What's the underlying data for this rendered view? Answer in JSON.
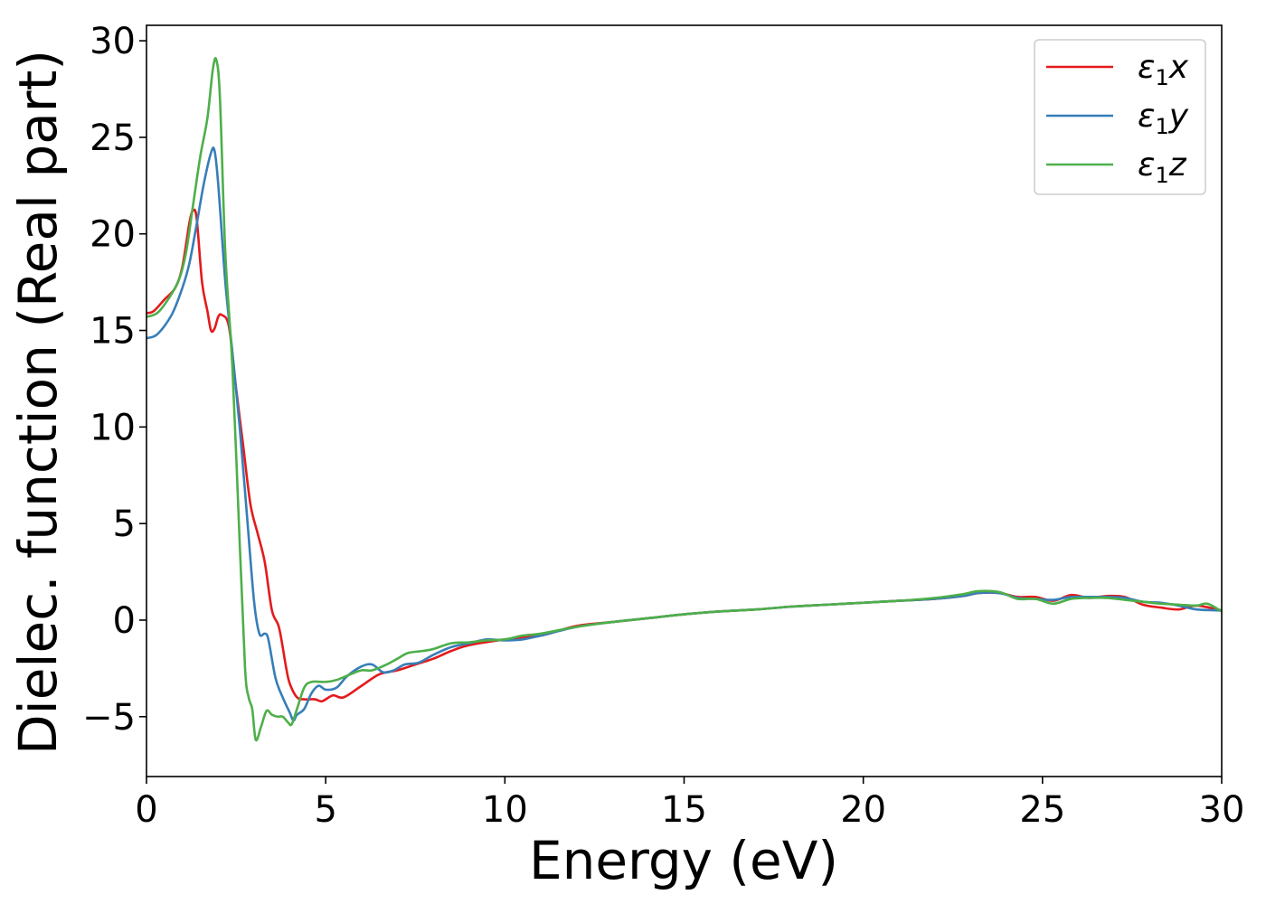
{
  "chart_data": {
    "type": "line",
    "xlabel": "Energy (eV)",
    "ylabel": "Dielec. function (Real part)",
    "xlim": [
      0,
      30
    ],
    "ylim": [
      -8.1,
      30.8
    ],
    "xticks": [
      0,
      5,
      10,
      15,
      20,
      25,
      30
    ],
    "xtick_labels": [
      "0",
      "5",
      "10",
      "15",
      "20",
      "25",
      "30"
    ],
    "yticks": [
      -5,
      0,
      5,
      10,
      15,
      20,
      25,
      30
    ],
    "ytick_labels": [
      "−5",
      "0",
      "5",
      "10",
      "15",
      "20",
      "25",
      "30"
    ],
    "grid": false,
    "legend_position": "top-right",
    "series": [
      {
        "name": "ε₁x",
        "legend_base": "ε",
        "legend_sub": "1",
        "legend_axis": "x",
        "color": "#e41a1c",
        "points": [
          [
            0,
            15.9
          ],
          [
            0.2,
            16.0
          ],
          [
            0.5,
            16.6
          ],
          [
            0.8,
            17.2
          ],
          [
            1.0,
            18.3
          ],
          [
            1.2,
            20.6
          ],
          [
            1.3,
            21.2
          ],
          [
            1.4,
            20.8
          ],
          [
            1.55,
            17.5
          ],
          [
            1.7,
            16.0
          ],
          [
            1.8,
            15.0
          ],
          [
            1.9,
            15.1
          ],
          [
            2.0,
            15.7
          ],
          [
            2.1,
            15.8
          ],
          [
            2.3,
            15.2
          ],
          [
            2.5,
            12.0
          ],
          [
            2.7,
            9.0
          ],
          [
            2.9,
            6.0
          ],
          [
            3.1,
            4.5
          ],
          [
            3.3,
            3.0
          ],
          [
            3.5,
            0.5
          ],
          [
            3.7,
            -0.4
          ],
          [
            3.9,
            -2.5
          ],
          [
            4.0,
            -3.3
          ],
          [
            4.2,
            -4.0
          ],
          [
            4.4,
            -4.1
          ],
          [
            4.7,
            -4.1
          ],
          [
            4.9,
            -4.2
          ],
          [
            5.2,
            -3.9
          ],
          [
            5.5,
            -4.0
          ],
          [
            6.0,
            -3.4
          ],
          [
            6.5,
            -2.8
          ],
          [
            7.0,
            -2.6
          ],
          [
            7.5,
            -2.3
          ],
          [
            8.0,
            -2.0
          ],
          [
            8.5,
            -1.6
          ],
          [
            9.0,
            -1.3
          ],
          [
            10.0,
            -1.0
          ],
          [
            11.0,
            -0.8
          ],
          [
            12.0,
            -0.3
          ],
          [
            13.0,
            -0.1
          ],
          [
            14.0,
            0.1
          ],
          [
            15.0,
            0.3
          ],
          [
            16.0,
            0.45
          ],
          [
            17.0,
            0.55
          ],
          [
            18.0,
            0.7
          ],
          [
            19.0,
            0.8
          ],
          [
            20.0,
            0.9
          ],
          [
            21.0,
            1.0
          ],
          [
            22.0,
            1.1
          ],
          [
            22.8,
            1.25
          ],
          [
            23.2,
            1.4
          ],
          [
            23.8,
            1.4
          ],
          [
            24.3,
            1.2
          ],
          [
            24.8,
            1.2
          ],
          [
            25.3,
            1.0
          ],
          [
            25.8,
            1.3
          ],
          [
            26.3,
            1.15
          ],
          [
            26.8,
            1.25
          ],
          [
            27.3,
            1.2
          ],
          [
            27.8,
            0.8
          ],
          [
            28.3,
            0.65
          ],
          [
            28.8,
            0.55
          ],
          [
            29.3,
            0.75
          ],
          [
            30.0,
            0.5
          ]
        ]
      },
      {
        "name": "ε₁y",
        "legend_base": "ε",
        "legend_sub": "1",
        "legend_axis": "y",
        "color": "#377eb8",
        "points": [
          [
            0,
            14.6
          ],
          [
            0.3,
            14.8
          ],
          [
            0.7,
            15.8
          ],
          [
            1.0,
            17.2
          ],
          [
            1.2,
            18.5
          ],
          [
            1.4,
            20.5
          ],
          [
            1.6,
            22.6
          ],
          [
            1.8,
            24.2
          ],
          [
            1.9,
            24.3
          ],
          [
            2.0,
            22.6
          ],
          [
            2.2,
            17.5
          ],
          [
            2.4,
            13.8
          ],
          [
            2.6,
            10.0
          ],
          [
            2.8,
            5.5
          ],
          [
            3.0,
            1.0
          ],
          [
            3.15,
            -0.7
          ],
          [
            3.3,
            -0.7
          ],
          [
            3.4,
            -1.0
          ],
          [
            3.6,
            -3.0
          ],
          [
            3.8,
            -4.0
          ],
          [
            4.0,
            -4.8
          ],
          [
            4.1,
            -5.2
          ],
          [
            4.2,
            -4.9
          ],
          [
            4.4,
            -4.6
          ],
          [
            4.6,
            -3.8
          ],
          [
            4.8,
            -3.4
          ],
          [
            5.0,
            -3.6
          ],
          [
            5.3,
            -3.5
          ],
          [
            5.6,
            -2.9
          ],
          [
            6.0,
            -2.4
          ],
          [
            6.3,
            -2.3
          ],
          [
            6.6,
            -2.7
          ],
          [
            6.9,
            -2.6
          ],
          [
            7.2,
            -2.3
          ],
          [
            7.6,
            -2.2
          ],
          [
            8.0,
            -1.8
          ],
          [
            8.5,
            -1.4
          ],
          [
            9.0,
            -1.2
          ],
          [
            9.5,
            -1.0
          ],
          [
            10.0,
            -1.05
          ],
          [
            10.5,
            -1.0
          ],
          [
            11.0,
            -0.8
          ],
          [
            12.0,
            -0.35
          ],
          [
            13.0,
            -0.1
          ],
          [
            14.0,
            0.1
          ],
          [
            15.0,
            0.3
          ],
          [
            16.0,
            0.45
          ],
          [
            17.0,
            0.55
          ],
          [
            18.0,
            0.7
          ],
          [
            19.0,
            0.8
          ],
          [
            20.0,
            0.9
          ],
          [
            21.0,
            1.0
          ],
          [
            22.0,
            1.1
          ],
          [
            22.8,
            1.25
          ],
          [
            23.2,
            1.4
          ],
          [
            23.8,
            1.4
          ],
          [
            24.3,
            1.15
          ],
          [
            24.8,
            1.1
          ],
          [
            25.3,
            1.05
          ],
          [
            25.8,
            1.2
          ],
          [
            26.3,
            1.2
          ],
          [
            26.8,
            1.2
          ],
          [
            27.3,
            1.15
          ],
          [
            27.8,
            0.95
          ],
          [
            28.3,
            0.9
          ],
          [
            28.8,
            0.75
          ],
          [
            29.3,
            0.55
          ],
          [
            30.0,
            0.5
          ]
        ]
      },
      {
        "name": "ε₁z",
        "legend_base": "ε",
        "legend_sub": "1",
        "legend_axis": "z",
        "color": "#4daf4a",
        "points": [
          [
            0,
            15.7
          ],
          [
            0.3,
            15.9
          ],
          [
            0.6,
            16.6
          ],
          [
            0.9,
            17.6
          ],
          [
            1.1,
            19.0
          ],
          [
            1.3,
            21.5
          ],
          [
            1.5,
            24.0
          ],
          [
            1.7,
            26.0
          ],
          [
            1.85,
            28.5
          ],
          [
            1.95,
            29.0
          ],
          [
            2.05,
            27.0
          ],
          [
            2.2,
            19.0
          ],
          [
            2.4,
            13.0
          ],
          [
            2.6,
            4.0
          ],
          [
            2.75,
            -2.5
          ],
          [
            2.85,
            -4.0
          ],
          [
            2.95,
            -4.6
          ],
          [
            3.05,
            -6.2
          ],
          [
            3.2,
            -5.5
          ],
          [
            3.35,
            -4.7
          ],
          [
            3.5,
            -4.9
          ],
          [
            3.65,
            -5.0
          ],
          [
            3.8,
            -5.0
          ],
          [
            3.95,
            -5.3
          ],
          [
            4.05,
            -5.4
          ],
          [
            4.2,
            -4.6
          ],
          [
            4.4,
            -3.5
          ],
          [
            4.6,
            -3.2
          ],
          [
            5.0,
            -3.2
          ],
          [
            5.3,
            -3.1
          ],
          [
            5.7,
            -2.8
          ],
          [
            6.0,
            -2.6
          ],
          [
            6.3,
            -2.6
          ],
          [
            6.7,
            -2.3
          ],
          [
            7.0,
            -2.0
          ],
          [
            7.3,
            -1.7
          ],
          [
            7.7,
            -1.6
          ],
          [
            8.0,
            -1.5
          ],
          [
            8.5,
            -1.2
          ],
          [
            9.0,
            -1.15
          ],
          [
            9.5,
            -1.05
          ],
          [
            10.0,
            -1.0
          ],
          [
            10.5,
            -0.8
          ],
          [
            11.0,
            -0.7
          ],
          [
            12.0,
            -0.35
          ],
          [
            13.0,
            -0.1
          ],
          [
            14.0,
            0.1
          ],
          [
            15.0,
            0.3
          ],
          [
            16.0,
            0.45
          ],
          [
            17.0,
            0.55
          ],
          [
            18.0,
            0.7
          ],
          [
            19.0,
            0.8
          ],
          [
            20.0,
            0.9
          ],
          [
            21.0,
            1.0
          ],
          [
            22.0,
            1.15
          ],
          [
            22.8,
            1.35
          ],
          [
            23.2,
            1.5
          ],
          [
            23.8,
            1.45
          ],
          [
            24.3,
            1.1
          ],
          [
            24.8,
            1.1
          ],
          [
            25.3,
            0.85
          ],
          [
            25.8,
            1.1
          ],
          [
            26.3,
            1.15
          ],
          [
            26.8,
            1.15
          ],
          [
            27.3,
            1.05
          ],
          [
            27.8,
            0.95
          ],
          [
            28.3,
            0.85
          ],
          [
            28.8,
            0.8
          ],
          [
            29.3,
            0.75
          ],
          [
            29.6,
            0.85
          ],
          [
            30.0,
            0.45
          ]
        ]
      }
    ]
  }
}
